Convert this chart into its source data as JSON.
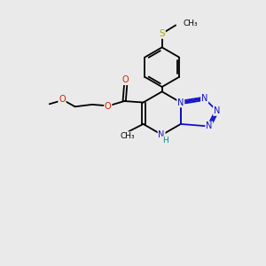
{
  "bg_color": "#eaeaea",
  "bond_color": "#000000",
  "N_color": "#1010cc",
  "O_color": "#cc2200",
  "S_color": "#aaaa00",
  "H_color": "#008888",
  "font_size": 7.0,
  "bond_width": 1.3,
  "figsize": [
    3.0,
    3.0
  ],
  "dpi": 100,
  "xlim": [
    0,
    10
  ],
  "ylim": [
    0,
    10
  ]
}
